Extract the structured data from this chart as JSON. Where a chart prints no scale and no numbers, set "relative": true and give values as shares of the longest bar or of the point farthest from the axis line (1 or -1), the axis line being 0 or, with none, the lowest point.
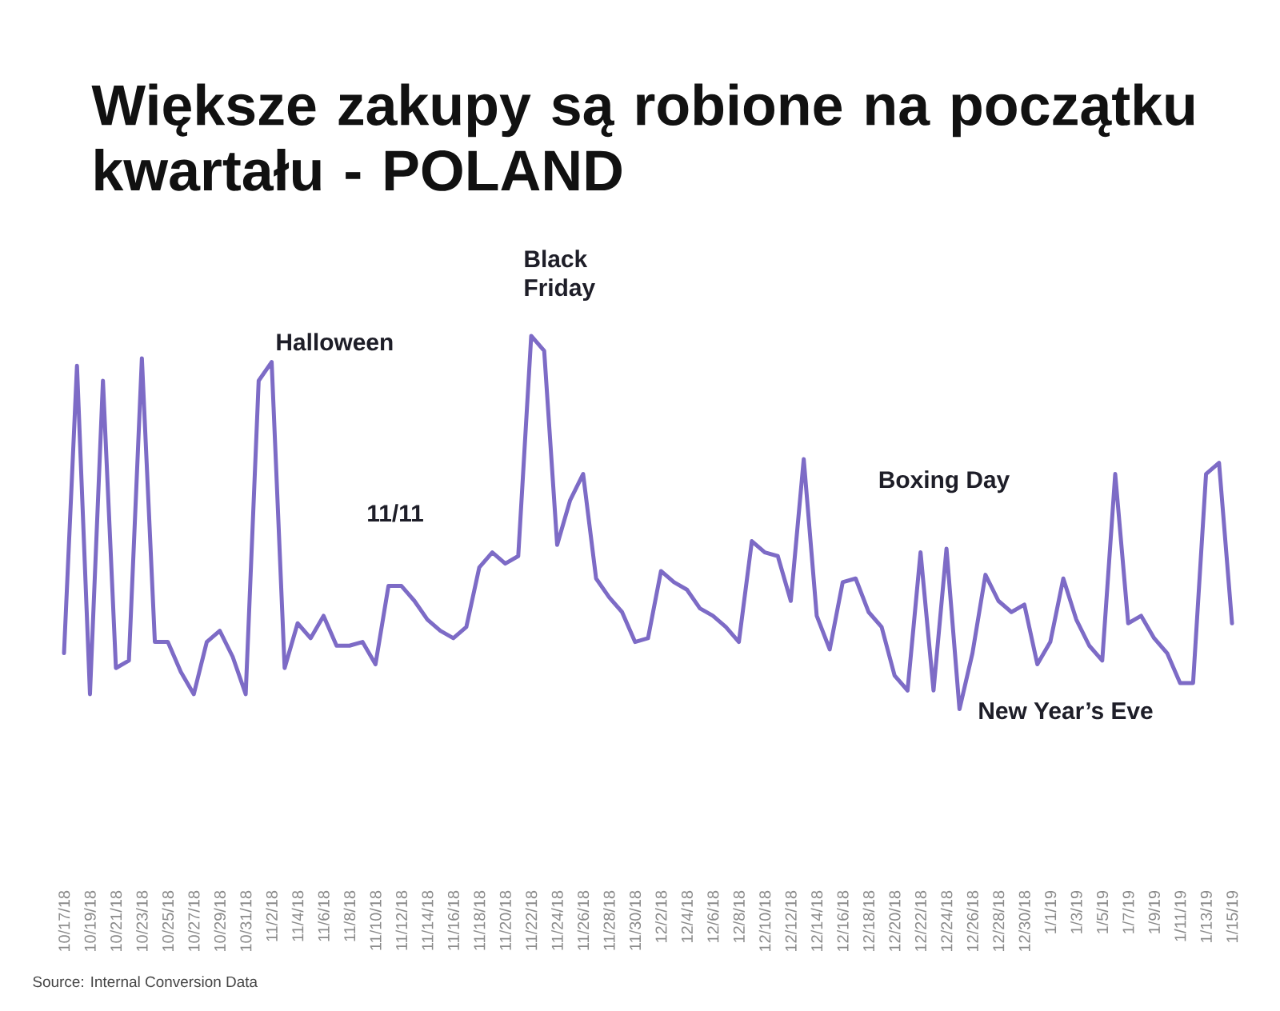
{
  "chart_data": {
    "type": "line",
    "title": "Większe zakupy są robione na początku kwartału - POLAND",
    "relative": true,
    "categories": [
      "10/17/18",
      null,
      "10/19/18",
      null,
      "10/21/18",
      null,
      "10/23/18",
      null,
      "10/25/18",
      null,
      "10/27/18",
      null,
      "10/29/18",
      null,
      "10/31/18",
      null,
      "11/2/18",
      null,
      "11/4/18",
      null,
      "11/6/18",
      null,
      "11/8/18",
      null,
      "11/10/18",
      null,
      "11/12/18",
      null,
      "11/14/18",
      null,
      "11/16/18",
      null,
      "11/18/18",
      null,
      "11/20/18",
      null,
      "11/22/18",
      null,
      "11/24/18",
      null,
      "11/26/18",
      null,
      "11/28/18",
      null,
      "11/30/18",
      null,
      "12/2/18",
      null,
      "12/4/18",
      null,
      "12/6/18",
      null,
      "12/8/18",
      null,
      "12/10/18",
      null,
      "12/12/18",
      null,
      "12/14/18",
      null,
      "12/16/18",
      null,
      "12/18/18",
      null,
      "12/20/18",
      null,
      "12/22/18",
      null,
      "12/24/18",
      null,
      "12/26/18",
      null,
      "12/28/18",
      null,
      "12/30/18",
      null,
      "1/1/19",
      null,
      "1/3/19",
      null,
      "1/5/19",
      null,
      "1/7/19",
      null,
      "1/9/19",
      null,
      "1/11/19",
      null,
      "1/13/19",
      null,
      "1/15/19"
    ],
    "series": [
      {
        "color": "#7d6bc6",
        "values": [
          0.15,
          0.92,
          0.04,
          0.88,
          0.11,
          0.13,
          0.94,
          0.18,
          0.18,
          0.1,
          0.04,
          0.18,
          0.21,
          0.14,
          0.04,
          0.88,
          0.93,
          0.11,
          0.23,
          0.19,
          0.25,
          0.17,
          0.17,
          0.18,
          0.12,
          0.33,
          0.33,
          0.29,
          0.24,
          0.21,
          0.19,
          0.22,
          0.38,
          0.42,
          0.39,
          0.41,
          1.0,
          0.96,
          0.44,
          0.56,
          0.63,
          0.35,
          0.3,
          0.26,
          0.18,
          0.19,
          0.37,
          0.34,
          0.32,
          0.27,
          0.25,
          0.22,
          0.18,
          0.45,
          0.42,
          0.41,
          0.29,
          0.67,
          0.25,
          0.16,
          0.34,
          0.35,
          0.26,
          0.22,
          0.09,
          0.05,
          0.42,
          0.05,
          0.43,
          0.0,
          0.15,
          0.36,
          0.29,
          0.26,
          0.28,
          0.12,
          0.18,
          0.35,
          0.24,
          0.17,
          0.13,
          0.63,
          0.23,
          0.25,
          0.19,
          0.15,
          0.07,
          0.07,
          0.63,
          0.66,
          0.23
        ]
      }
    ],
    "annotations": [
      "Halloween",
      "11/11",
      "Black Friday",
      "Boxing Day",
      "New Year’s Eve",
      "Source: Internal Conversion Data"
    ]
  }
}
